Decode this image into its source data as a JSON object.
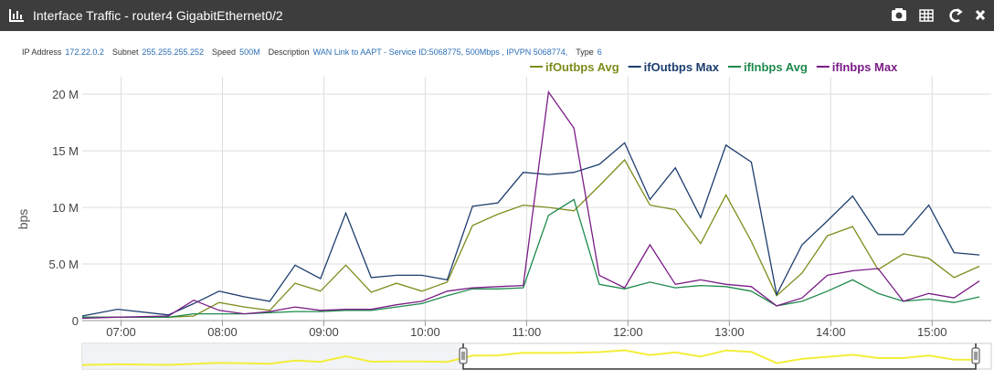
{
  "header": {
    "title": "Interface Traffic - router4 GigabitEthernet0/2"
  },
  "info": [
    {
      "label": "IP Address",
      "value": "172.22.0.2"
    },
    {
      "label": "Subnet",
      "value": "255.255.255.252"
    },
    {
      "label": "Speed",
      "value": "500M"
    },
    {
      "label": "Description",
      "value": "WAN Link to AAPT - Service ID:5068775, 500Mbps , IPVPN 5068774,"
    },
    {
      "label": "Type",
      "value": "6"
    }
  ],
  "chart_data": {
    "type": "line",
    "ylabel": "bps",
    "x": [
      397,
      418,
      448,
      463,
      478,
      493,
      508,
      523,
      538,
      553,
      568,
      583,
      598,
      613,
      628,
      643,
      658,
      673,
      688,
      703,
      718,
      733,
      748,
      763,
      778,
      793,
      808,
      823,
      838,
      853,
      868,
      883,
      898,
      913,
      928
    ],
    "xlim": [
      397,
      935
    ],
    "xticks": [
      {
        "value": 420,
        "label": "07:00"
      },
      {
        "value": 480,
        "label": "08:00"
      },
      {
        "value": 540,
        "label": "09:00"
      },
      {
        "value": 600,
        "label": "10:00"
      },
      {
        "value": 660,
        "label": "11:00"
      },
      {
        "value": 720,
        "label": "12:00"
      },
      {
        "value": 780,
        "label": "13:00"
      },
      {
        "value": 840,
        "label": "14:00"
      },
      {
        "value": 900,
        "label": "15:00"
      }
    ],
    "ylim": [
      0,
      20900000
    ],
    "yticks": [
      0,
      {
        "value": 5000000,
        "label": "5.0 M"
      },
      {
        "value": 10000000,
        "label": "10 M"
      },
      {
        "value": 15000000,
        "label": "15 M"
      },
      {
        "value": 20000000,
        "label": "20 M"
      }
    ],
    "grid": true,
    "series": [
      {
        "name": "ifOutbps Avg",
        "color": "#7f8c1c",
        "values": [
          300000,
          300000,
          300000,
          400000,
          1600000,
          1200000,
          900000,
          3300000,
          2600000,
          4900000,
          2500000,
          3300000,
          2600000,
          3400000,
          8400000,
          9400000,
          10200000,
          10000000,
          9700000,
          11900000,
          14200000,
          10200000,
          9800000,
          6800000,
          11100000,
          7000000,
          2200000,
          4200000,
          7500000,
          8300000,
          4500000,
          5900000,
          5500000,
          3800000,
          4800000
        ]
      },
      {
        "name": "ifOutbps Max",
        "color": "#1c3d6e",
        "values": [
          400000,
          1000000,
          500000,
          1500000,
          2600000,
          2100000,
          1700000,
          4900000,
          3700000,
          9500000,
          3800000,
          4000000,
          4000000,
          3600000,
          10100000,
          10400000,
          13100000,
          12900000,
          13100000,
          13800000,
          15700000,
          10700000,
          13500000,
          9100000,
          15500000,
          14000000,
          2300000,
          6700000,
          8800000,
          11000000,
          7600000,
          7600000,
          10200000,
          6000000,
          5800000
        ]
      },
      {
        "name": "ifInbps Avg",
        "color": "#1e8a4c",
        "values": [
          300000,
          300000,
          300000,
          600000,
          600000,
          600000,
          700000,
          800000,
          800000,
          900000,
          900000,
          1200000,
          1500000,
          2200000,
          2800000,
          2800000,
          2900000,
          9300000,
          10700000,
          3200000,
          2800000,
          3400000,
          2900000,
          3100000,
          3000000,
          2600000,
          1300000,
          1700000,
          2600000,
          3600000,
          2400000,
          1700000,
          1900000,
          1600000,
          2100000
        ]
      },
      {
        "name": "ifInbps Max",
        "color": "#7a1c86",
        "values": [
          200000,
          300000,
          400000,
          1800000,
          900000,
          600000,
          800000,
          1200000,
          900000,
          1000000,
          1000000,
          1400000,
          1700000,
          2600000,
          2900000,
          3000000,
          3100000,
          20200000,
          17000000,
          4000000,
          2900000,
          6700000,
          3200000,
          3600000,
          3200000,
          3000000,
          1300000,
          2000000,
          4000000,
          4400000,
          4600000,
          1700000,
          2400000,
          2000000,
          3500000
        ]
      }
    ]
  }
}
